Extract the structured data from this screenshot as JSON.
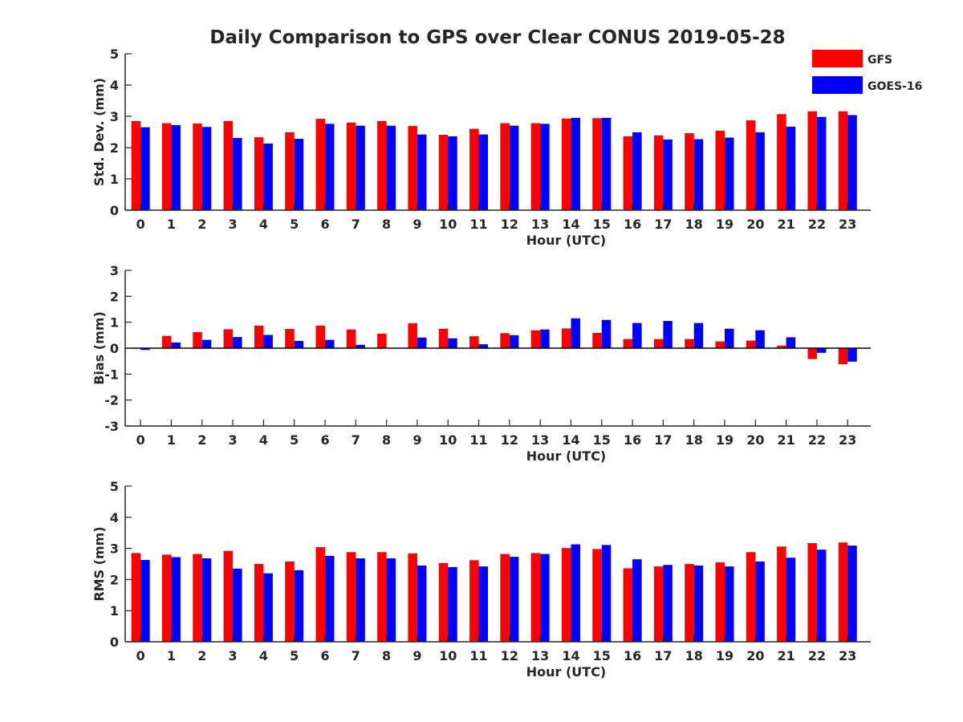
{
  "title": "Daily Comparison to GPS over Clear CONUS 2019-05-28",
  "legend": {
    "position": "top-right",
    "entries": [
      {
        "name": "GFS",
        "color": "#ff0000"
      },
      {
        "name": "GOES-16",
        "color": "#0000ff"
      }
    ]
  },
  "chart_data": [
    {
      "type": "bar",
      "title": "",
      "xlabel": "Hour (UTC)",
      "ylabel": "Std. Dev. (mm)",
      "ylim": [
        0,
        5
      ],
      "yticks": [
        "0",
        "1",
        "2",
        "3",
        "4",
        "5"
      ],
      "categories": [
        "0",
        "1",
        "2",
        "3",
        "4",
        "5",
        "6",
        "7",
        "8",
        "9",
        "10",
        "11",
        "12",
        "13",
        "14",
        "15",
        "16",
        "17",
        "18",
        "19",
        "20",
        "21",
        "22",
        "23"
      ],
      "series": [
        {
          "name": "GFS",
          "color": "#ff0000",
          "values": [
            2.85,
            2.78,
            2.77,
            2.85,
            2.33,
            2.49,
            2.92,
            2.8,
            2.85,
            2.69,
            2.41,
            2.6,
            2.78,
            2.78,
            2.93,
            2.94,
            2.36,
            2.39,
            2.46,
            2.54,
            2.87,
            3.07,
            3.16,
            3.16
          ]
        },
        {
          "name": "GOES-16",
          "color": "#0000ff",
          "values": [
            2.65,
            2.72,
            2.66,
            2.31,
            2.13,
            2.28,
            2.76,
            2.7,
            2.7,
            2.42,
            2.36,
            2.42,
            2.7,
            2.76,
            2.95,
            2.95,
            2.49,
            2.26,
            2.27,
            2.32,
            2.49,
            2.67,
            2.98,
            3.04
          ]
        }
      ]
    },
    {
      "type": "bar",
      "title": "",
      "xlabel": "Hour (UTC)",
      "ylabel": "Bias (mm)",
      "ylim": [
        -3,
        3
      ],
      "yticks": [
        "-3",
        "-2",
        "-1",
        "0",
        "1",
        "2",
        "3"
      ],
      "categories": [
        "0",
        "1",
        "2",
        "3",
        "4",
        "5",
        "6",
        "7",
        "8",
        "9",
        "10",
        "11",
        "12",
        "13",
        "14",
        "15",
        "16",
        "17",
        "18",
        "19",
        "20",
        "21",
        "22",
        "23"
      ],
      "series": [
        {
          "name": "GFS",
          "color": "#ff0000",
          "values": [
            0.0,
            0.47,
            0.62,
            0.73,
            0.87,
            0.74,
            0.87,
            0.72,
            0.56,
            0.96,
            0.75,
            0.46,
            0.58,
            0.69,
            0.76,
            0.59,
            0.35,
            0.35,
            0.35,
            0.26,
            0.29,
            0.1,
            -0.42,
            -0.62
          ]
        },
        {
          "name": "GOES-16",
          "color": "#0000ff",
          "values": [
            -0.07,
            0.22,
            0.32,
            0.43,
            0.51,
            0.28,
            0.32,
            0.13,
            0.0,
            0.41,
            0.38,
            0.15,
            0.5,
            0.72,
            1.15,
            1.09,
            0.97,
            1.05,
            0.97,
            0.75,
            0.69,
            0.42,
            -0.18,
            -0.52
          ]
        }
      ]
    },
    {
      "type": "bar",
      "title": "",
      "xlabel": "Hour (UTC)",
      "ylabel": "RMS (mm)",
      "ylim": [
        0,
        5
      ],
      "yticks": [
        "0",
        "1",
        "2",
        "3",
        "4",
        "5"
      ],
      "categories": [
        "0",
        "1",
        "2",
        "3",
        "4",
        "5",
        "6",
        "7",
        "8",
        "9",
        "10",
        "11",
        "12",
        "13",
        "14",
        "15",
        "16",
        "17",
        "18",
        "19",
        "20",
        "21",
        "22",
        "23"
      ],
      "series": [
        {
          "name": "GFS",
          "color": "#ff0000",
          "values": [
            2.85,
            2.8,
            2.82,
            2.92,
            2.5,
            2.58,
            3.04,
            2.88,
            2.88,
            2.84,
            2.53,
            2.62,
            2.82,
            2.85,
            3.01,
            2.98,
            2.36,
            2.42,
            2.5,
            2.55,
            2.88,
            3.06,
            3.17,
            3.19
          ]
        },
        {
          "name": "GOES-16",
          "color": "#0000ff",
          "values": [
            2.63,
            2.72,
            2.68,
            2.35,
            2.2,
            2.3,
            2.76,
            2.68,
            2.68,
            2.45,
            2.4,
            2.42,
            2.73,
            2.82,
            3.13,
            3.11,
            2.65,
            2.47,
            2.45,
            2.42,
            2.58,
            2.7,
            2.96,
            3.09
          ]
        }
      ]
    }
  ]
}
